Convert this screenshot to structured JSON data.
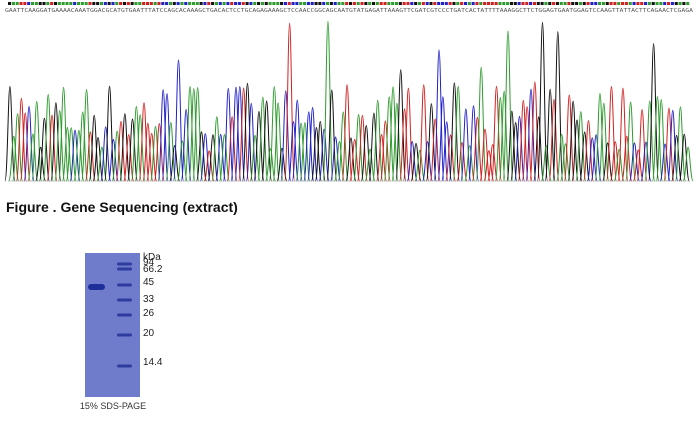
{
  "sequence": "GAATTCAAGGATGAAAACAAATGGACGCATGTGAATTTATCCAGCACAAAGCTGACACTCCTGCAGAGAAAGCTCCAACCGGCAGCAATGTATGAGATTAAAGTTCGATCGTCCCTGATCACTATTTTAAAGGCTTCTGGAGTGAATGGAGTCCAAGTTATTACTTCAGAACTCGAGA",
  "caption": "Figure . Gene Sequencing (extract)",
  "gel": {
    "unit": "kDa",
    "markers": [
      "94",
      "66.2",
      "45",
      "33",
      "26",
      "20",
      "14.4"
    ],
    "label": "15% SDS-PAGE"
  }
}
